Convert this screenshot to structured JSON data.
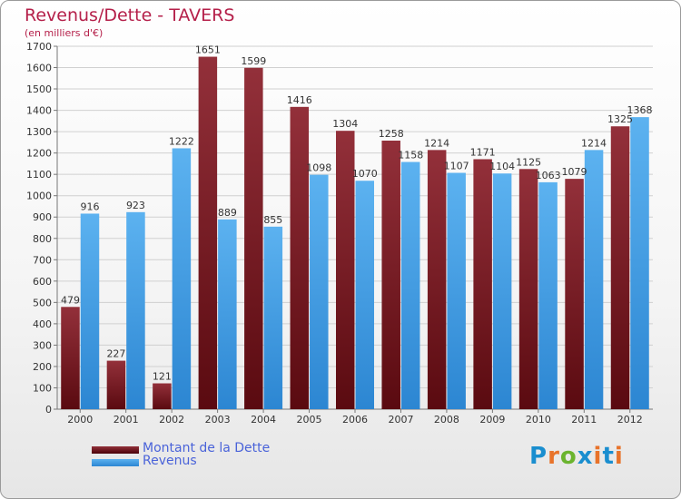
{
  "title": "Revenus/Dette - TAVERS",
  "subtitle": "(en milliers d'€)",
  "logo": {
    "text": "Proxiti",
    "letters": [
      "P",
      "r",
      "o",
      "x",
      "i",
      "t",
      "i"
    ],
    "colors": [
      "#1a8ecf",
      "#e8732a",
      "#6bb42f",
      "#1a8ecf",
      "#e8732a",
      "#1a8ecf",
      "#e8732a"
    ]
  },
  "colors": {
    "dette": "#8a1c24",
    "revenus": "#3f9fe6",
    "title": "#b5204a",
    "legend_text": "#4a63d9"
  },
  "chart_data": {
    "type": "bar",
    "title": "Revenus/Dette - TAVERS",
    "subtitle": "(en milliers d'€)",
    "xlabel": "",
    "ylabel": "",
    "ylim": [
      0,
      1700
    ],
    "ytick_step": 100,
    "grid": true,
    "legend_position": "bottom-left",
    "categories": [
      "2000",
      "2001",
      "2002",
      "2003",
      "2004",
      "2005",
      "2006",
      "2007",
      "2008",
      "2009",
      "2010",
      "2011",
      "2012"
    ],
    "series": [
      {
        "name": "Montant de la Dette",
        "color": "#8a1c24",
        "values": [
          479,
          227,
          121,
          1651,
          1599,
          1416,
          1304,
          1258,
          1214,
          1171,
          1125,
          1079,
          1325
        ]
      },
      {
        "name": "Revenus",
        "color": "#3f9fe6",
        "values": [
          916,
          923,
          1222,
          889,
          855,
          1098,
          1070,
          1158,
          1107,
          1104,
          1063,
          1214,
          1368
        ]
      }
    ]
  }
}
